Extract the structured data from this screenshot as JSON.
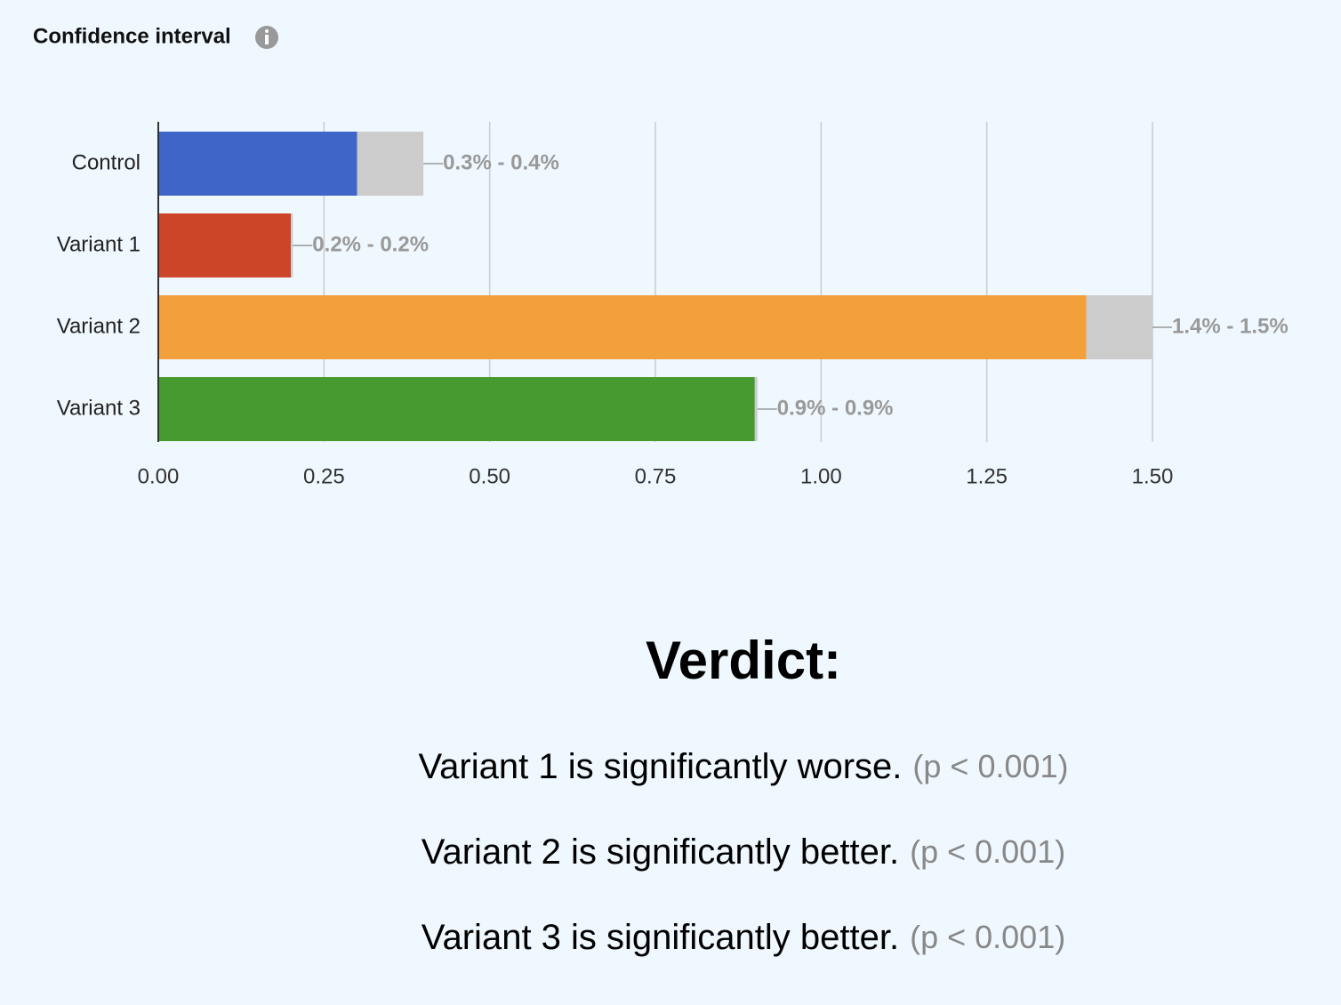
{
  "header": {
    "title": "Confidence interval"
  },
  "chart_data": {
    "type": "range-bar",
    "categories": [
      "Control",
      "Variant 1",
      "Variant 2",
      "Variant 3"
    ],
    "lower": [
      0.3,
      0.2,
      1.4,
      0.9
    ],
    "upper": [
      0.4,
      0.203,
      1.5,
      0.904
    ],
    "range_labels": [
      "0.3% - 0.4%",
      "0.2% - 0.2%",
      "1.4% - 1.5%",
      "0.9% - 0.9%"
    ],
    "colors": [
      "#4065c8",
      "#cc4528",
      "#f1a03b",
      "#479a2f"
    ],
    "interval_color": "#cccccc",
    "xlim": [
      0,
      1.5
    ],
    "xticks": [
      {
        "value": 0,
        "label": "0.00"
      },
      {
        "value": 0.25,
        "label": "0.25"
      },
      {
        "value": 0.5,
        "label": "0.50"
      },
      {
        "value": 0.75,
        "label": "0.75"
      },
      {
        "value": 1,
        "label": "1.00"
      },
      {
        "value": 1.25,
        "label": "1.25"
      },
      {
        "value": 1.5,
        "label": "1.50"
      }
    ],
    "grid": true
  },
  "verdict": {
    "title": "Verdict:",
    "lines": [
      {
        "text": "Variant 1 is significantly worse.",
        "p": "(p < 0.001)"
      },
      {
        "text": "Variant 2 is significantly better.",
        "p": "(p < 0.001)"
      },
      {
        "text": "Variant 3 is significantly better.",
        "p": "(p < 0.001)"
      }
    ]
  }
}
